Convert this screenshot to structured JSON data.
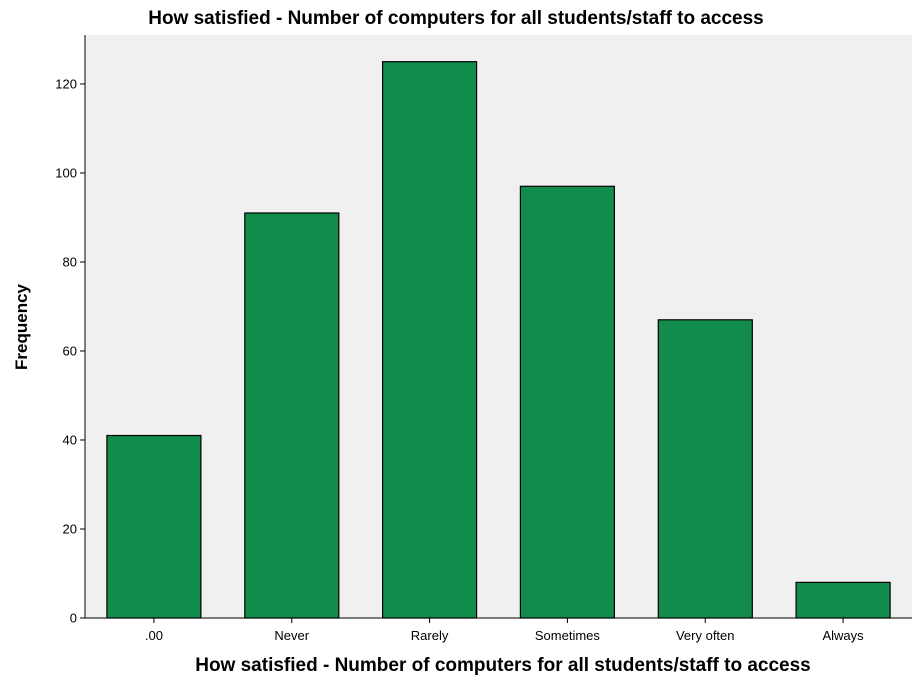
{
  "chart_data": {
    "type": "bar",
    "title": "How satisfied -  Number of computers for all students/staff to access",
    "xlabel": "How satisfied -  Number of computers for all students/staff to access",
    "ylabel": "Frequency",
    "categories": [
      ".00",
      "Never",
      "Rarely",
      "Sometimes",
      "Very often",
      "Always"
    ],
    "values": [
      41,
      91,
      125,
      97,
      67,
      8
    ],
    "ylim": [
      0,
      131
    ],
    "yticks": [
      0,
      20,
      40,
      60,
      80,
      100,
      120
    ],
    "grid": false,
    "legend": "none",
    "colors": {
      "bar_fill": "#118c4a",
      "bar_stroke": "#000000",
      "plot_background": "#f0f0f0",
      "axis": "#000000"
    }
  }
}
